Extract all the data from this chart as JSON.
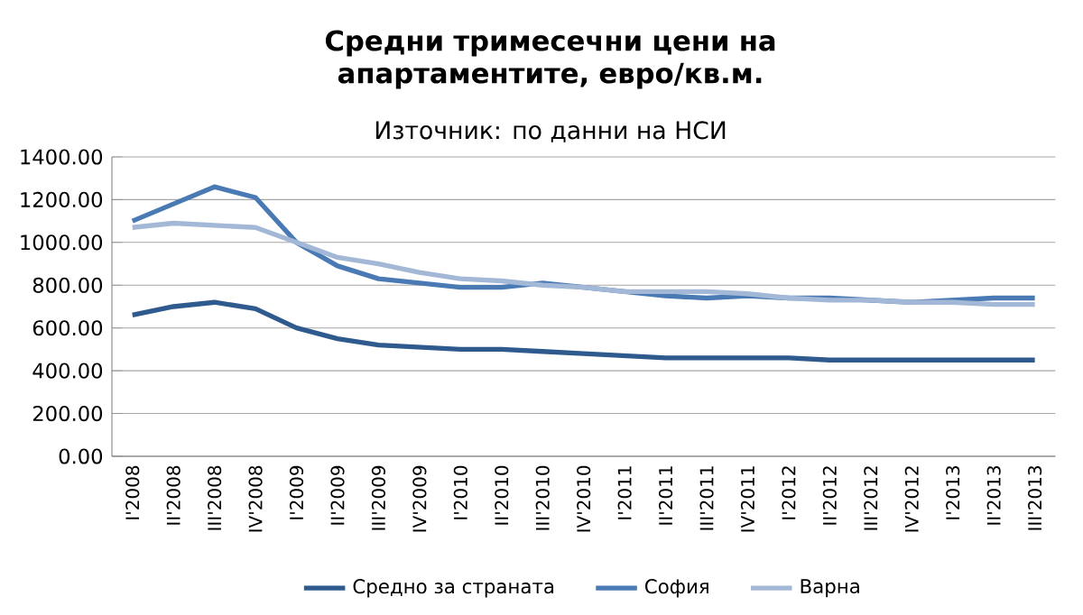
{
  "chart_data": {
    "type": "line",
    "title": "Средни тримесечни цени на апартаментите, евро/кв.м.",
    "subtitle": "Източник: по данни на НСИ",
    "categories": [
      "I'2008",
      "II'2008",
      "III'2008",
      "IV'2008",
      "I'2009",
      "II'2009",
      "III'2009",
      "IV'2009",
      "I'2010",
      "II'2010",
      "III'2010",
      "IV'2010",
      "I'2011",
      "II'2011",
      "III'2011",
      "IV'2011",
      "I'2012",
      "II'2012",
      "III'2012",
      "IV'2012",
      "I'2013",
      "II'2013",
      "III'2013"
    ],
    "series": [
      {
        "name": "Средно за страната",
        "color": "#2f5a8e",
        "values": [
          660,
          700,
          720,
          690,
          600,
          550,
          520,
          510,
          500,
          500,
          490,
          480,
          470,
          460,
          460,
          460,
          460,
          450,
          450,
          450,
          450,
          450,
          450
        ]
      },
      {
        "name": "София",
        "color": "#4a7ab4",
        "values": [
          1100,
          1180,
          1260,
          1210,
          1000,
          890,
          830,
          810,
          790,
          790,
          810,
          790,
          770,
          750,
          740,
          750,
          740,
          740,
          730,
          720,
          730,
          740,
          740
        ]
      },
      {
        "name": "Варна",
        "color": "#a3b8d6",
        "values": [
          1070,
          1090,
          1080,
          1070,
          1000,
          930,
          900,
          860,
          830,
          820,
          800,
          790,
          770,
          770,
          770,
          760,
          740,
          730,
          730,
          720,
          720,
          710,
          710
        ]
      }
    ],
    "ylim": [
      0,
      1400
    ],
    "yticks": [
      {
        "value": 0,
        "label": "0.00"
      },
      {
        "value": 200,
        "label": "200.00"
      },
      {
        "value": 400,
        "label": "400.00"
      },
      {
        "value": 600,
        "label": "600.00"
      },
      {
        "value": 800,
        "label": "800.00"
      },
      {
        "value": 1000,
        "label": "1000.00"
      },
      {
        "value": 1200,
        "label": "1200.00"
      },
      {
        "value": 1400,
        "label": "1400.00"
      }
    ],
    "grid": "y",
    "legend": "bottom"
  }
}
